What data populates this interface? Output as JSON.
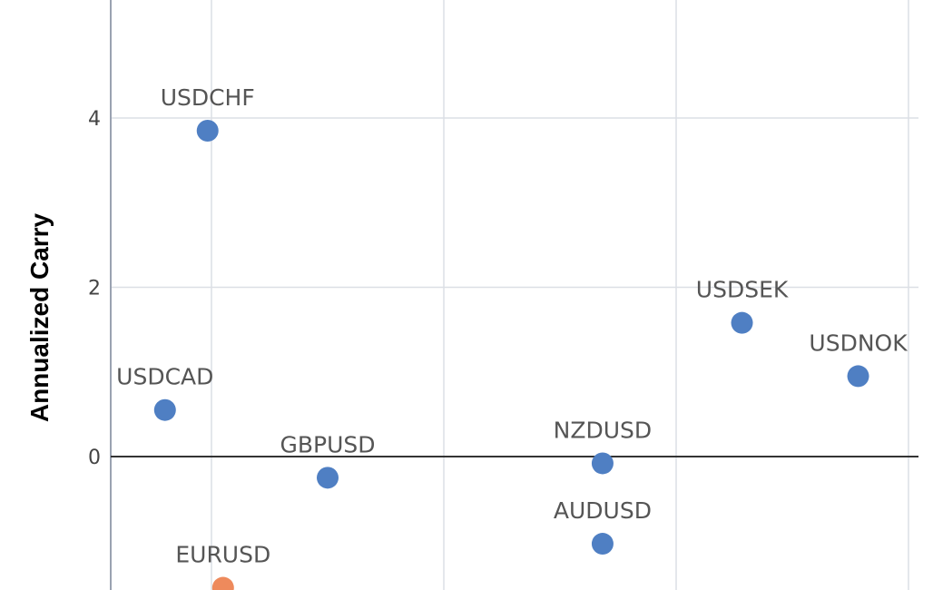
{
  "chart_data": {
    "type": "scatter",
    "ylabel": "Annualized Carry",
    "xlabel": "",
    "title": "",
    "ylim": [
      -1.6,
      5.4
    ],
    "xlim": [
      0.32,
      2.36
    ],
    "y_ticks": [
      {
        "value": 0,
        "label": "0"
      },
      {
        "value": 2,
        "label": "2"
      },
      {
        "value": 4,
        "label": "4"
      }
    ],
    "x_gridlines": [
      0.6,
      1.2,
      1.8,
      2.4
    ],
    "grid": true,
    "zero_line": true,
    "colors": {
      "primary": "#4f7fc3",
      "highlight": "#ee8a5c"
    },
    "points": [
      {
        "label": "USDCHF",
        "x": 0.59,
        "y": 3.85,
        "color": "#4f7fc3"
      },
      {
        "label": "USDCAD",
        "x": 0.48,
        "y": 0.55,
        "color": "#4f7fc3"
      },
      {
        "label": "GBPUSD",
        "x": 0.9,
        "y": -0.25,
        "color": "#4f7fc3"
      },
      {
        "label": "EURUSD",
        "x": 0.63,
        "y": -1.55,
        "color": "#ee8a5c"
      },
      {
        "label": "NZDUSD",
        "x": 1.61,
        "y": -0.08,
        "color": "#4f7fc3"
      },
      {
        "label": "AUDUSD",
        "x": 1.61,
        "y": -1.03,
        "color": "#4f7fc3"
      },
      {
        "label": "USDSEK",
        "x": 1.97,
        "y": 1.58,
        "color": "#4f7fc3"
      },
      {
        "label": "USDNOK",
        "x": 2.27,
        "y": 0.95,
        "color": "#4f7fc3"
      }
    ]
  }
}
